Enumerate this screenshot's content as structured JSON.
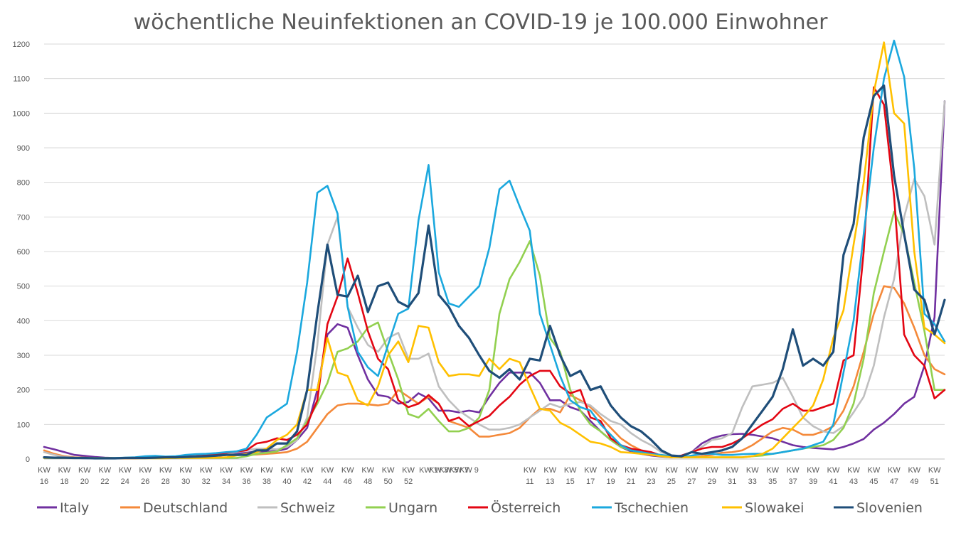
{
  "chart_data": {
    "type": "line",
    "title": "wöchentliche Neuinfektionen an COVID-19 je 100.000 Einwohner",
    "xlabel": "",
    "ylabel": "",
    "ylim": [
      0,
      1200
    ],
    "y_ticks": [
      0,
      100,
      200,
      300,
      400,
      500,
      600,
      700,
      800,
      900,
      1000,
      1100,
      1200
    ],
    "grid": "horizontal",
    "legend_position": "bottom",
    "x": [
      "KW 16",
      "KW 17",
      "KW 18",
      "KW 19",
      "KW 20",
      "KW 21",
      "KW 22",
      "KW 23",
      "KW 24",
      "KW 25",
      "KW 26",
      "KW 27",
      "KW 28",
      "KW 29",
      "KW 30",
      "KW 31",
      "KW 32",
      "KW 33",
      "KW 34",
      "KW 35",
      "KW 36",
      "KW 37",
      "KW 38",
      "KW 39",
      "KW 40",
      "KW 41",
      "KW 42",
      "KW 43",
      "KW 44",
      "KW 45",
      "KW 46",
      "KW 47",
      "KW 48",
      "KW 49",
      "KW 50",
      "KW 51",
      "KW 52",
      "KW 53",
      "KW 1",
      "KW 2",
      "KW 3",
      "KW 4",
      "KW 5",
      "KW 6",
      "KW 7",
      "KW 8",
      "KW 9",
      "KW 10",
      "KW 11",
      "KW 12",
      "KW 13",
      "KW 14",
      "KW 15",
      "KW 16",
      "KW 17",
      "KW 18",
      "KW 19",
      "KW 20",
      "KW 21",
      "KW 22",
      "KW 23",
      "KW 24",
      "KW 25",
      "KW 26",
      "KW 27",
      "KW 28",
      "KW 29",
      "KW 30",
      "KW 31",
      "KW 32",
      "KW 33",
      "KW 34",
      "KW 35",
      "KW 36",
      "KW 37",
      "KW 38",
      "KW 39",
      "KW 40",
      "KW 41",
      "KW 42",
      "KW 43",
      "KW 44",
      "KW 45",
      "KW 46",
      "KW 47",
      "KW 48",
      "KW 49",
      "KW 50",
      "KW 51",
      "KW 52"
    ],
    "x_tick_labels": [
      {
        "i": 0,
        "top": "KW",
        "bottom": "16"
      },
      {
        "i": 2,
        "top": "KW",
        "bottom": "18"
      },
      {
        "i": 4,
        "top": "KW",
        "bottom": "20"
      },
      {
        "i": 6,
        "top": "KW",
        "bottom": "22"
      },
      {
        "i": 8,
        "top": "KW",
        "bottom": "24"
      },
      {
        "i": 10,
        "top": "KW",
        "bottom": "26"
      },
      {
        "i": 12,
        "top": "KW",
        "bottom": "28"
      },
      {
        "i": 14,
        "top": "KW",
        "bottom": "30"
      },
      {
        "i": 16,
        "top": "KW",
        "bottom": "32"
      },
      {
        "i": 18,
        "top": "KW",
        "bottom": "34"
      },
      {
        "i": 20,
        "top": "KW",
        "bottom": "36"
      },
      {
        "i": 22,
        "top": "KW",
        "bottom": "38"
      },
      {
        "i": 24,
        "top": "KW",
        "bottom": "40"
      },
      {
        "i": 26,
        "top": "KW",
        "bottom": "42"
      },
      {
        "i": 28,
        "top": "KW",
        "bottom": "44"
      },
      {
        "i": 30,
        "top": "KW",
        "bottom": "46"
      },
      {
        "i": 32,
        "top": "KW",
        "bottom": "48"
      },
      {
        "i": 34,
        "top": "KW",
        "bottom": "50"
      },
      {
        "i": 36,
        "top": "KW",
        "bottom": "52"
      },
      {
        "i": 38,
        "top": "KW 1",
        "bottom": ""
      },
      {
        "i": 39,
        "top": "KW 3",
        "bottom": ""
      },
      {
        "i": 40,
        "top": "KW 5",
        "bottom": ""
      },
      {
        "i": 41,
        "top": "KW 7",
        "bottom": ""
      },
      {
        "i": 42,
        "top": "KW 9",
        "bottom": ""
      },
      {
        "i": 48,
        "top": "KW",
        "bottom": "11"
      },
      {
        "i": 50,
        "top": "KW",
        "bottom": "13"
      },
      {
        "i": 52,
        "top": "KW",
        "bottom": "15"
      },
      {
        "i": 54,
        "top": "KW",
        "bottom": "17"
      },
      {
        "i": 56,
        "top": "KW",
        "bottom": "19"
      },
      {
        "i": 58,
        "top": "KW",
        "bottom": "21"
      },
      {
        "i": 60,
        "top": "KW",
        "bottom": "23"
      },
      {
        "i": 62,
        "top": "KW",
        "bottom": "25"
      },
      {
        "i": 64,
        "top": "KW",
        "bottom": "27"
      },
      {
        "i": 66,
        "top": "KW",
        "bottom": "29"
      },
      {
        "i": 68,
        "top": "KW",
        "bottom": "31"
      },
      {
        "i": 70,
        "top": "KW",
        "bottom": "33"
      },
      {
        "i": 72,
        "top": "KW",
        "bottom": "35"
      },
      {
        "i": 74,
        "top": "KW",
        "bottom": "37"
      },
      {
        "i": 76,
        "top": "KW",
        "bottom": "39"
      },
      {
        "i": 78,
        "top": "KW",
        "bottom": "41"
      },
      {
        "i": 80,
        "top": "KW",
        "bottom": "43"
      },
      {
        "i": 82,
        "top": "KW",
        "bottom": "45"
      },
      {
        "i": 84,
        "top": "KW",
        "bottom": "47"
      },
      {
        "i": 86,
        "top": "KW",
        "bottom": "49"
      },
      {
        "i": 88,
        "top": "KW",
        "bottom": "51"
      }
    ],
    "series": [
      {
        "name": "Italy",
        "color": "#7030A0",
        "values": [
          35,
          28,
          20,
          12,
          9,
          6,
          4,
          3,
          3,
          3,
          3,
          4,
          4,
          5,
          5,
          6,
          7,
          9,
          12,
          15,
          18,
          22,
          22,
          23,
          30,
          55,
          90,
          200,
          360,
          390,
          380,
          300,
          230,
          185,
          180,
          160,
          165,
          190,
          175,
          140,
          140,
          135,
          140,
          135,
          180,
          220,
          250,
          250,
          250,
          220,
          170,
          170,
          150,
          140,
          110,
          80,
          55,
          35,
          22,
          15,
          10,
          7,
          5,
          10,
          20,
          45,
          60,
          68,
          72,
          73,
          70,
          65,
          60,
          50,
          40,
          35,
          32,
          30,
          28,
          35,
          45,
          58,
          85,
          105,
          130,
          160,
          180,
          270,
          410,
          1035
        ]
      },
      {
        "name": "Deutschland",
        "color": "#F4893A",
        "values": [
          25,
          15,
          8,
          5,
          4,
          3,
          2,
          2,
          2,
          3,
          3,
          4,
          4,
          4,
          5,
          6,
          8,
          10,
          12,
          12,
          12,
          13,
          15,
          17,
          20,
          30,
          50,
          90,
          130,
          155,
          160,
          160,
          158,
          155,
          160,
          200,
          180,
          160,
          180,
          160,
          110,
          100,
          90,
          65,
          65,
          70,
          75,
          90,
          120,
          145,
          145,
          135,
          185,
          170,
          150,
          120,
          90,
          60,
          40,
          25,
          15,
          10,
          8,
          5,
          5,
          8,
          12,
          18,
          20,
          25,
          40,
          60,
          80,
          90,
          85,
          70,
          70,
          80,
          95,
          140,
          210,
          310,
          420,
          500,
          495,
          450,
          380,
          300,
          260,
          245
        ]
      },
      {
        "name": "Schweiz",
        "color": "#BFBFBF",
        "values": [
          20,
          12,
          6,
          4,
          3,
          2,
          2,
          2,
          2,
          2,
          3,
          4,
          5,
          6,
          7,
          9,
          10,
          12,
          15,
          20,
          25,
          30,
          30,
          28,
          35,
          55,
          120,
          330,
          620,
          700,
          440,
          380,
          330,
          310,
          350,
          365,
          290,
          290,
          305,
          210,
          170,
          140,
          120,
          100,
          85,
          85,
          90,
          100,
          120,
          140,
          160,
          150,
          160,
          165,
          155,
          130,
          110,
          100,
          75,
          55,
          40,
          20,
          10,
          8,
          20,
          35,
          55,
          60,
          75,
          150,
          210,
          215,
          220,
          235,
          180,
          120,
          95,
          80,
          75,
          95,
          135,
          180,
          270,
          410,
          520,
          700,
          810,
          760,
          620,
          1035
        ]
      },
      {
        "name": "Ungarn",
        "color": "#92D050",
        "values": [
          3,
          3,
          3,
          3,
          3,
          3,
          3,
          3,
          3,
          3,
          3,
          3,
          3,
          3,
          3,
          3,
          3,
          3,
          3,
          3,
          8,
          15,
          18,
          22,
          40,
          60,
          110,
          160,
          220,
          310,
          320,
          340,
          380,
          395,
          310,
          230,
          130,
          120,
          145,
          110,
          80,
          80,
          90,
          120,
          200,
          420,
          520,
          570,
          630,
          530,
          350,
          310,
          200,
          140,
          100,
          80,
          55,
          35,
          25,
          20,
          15,
          10,
          8,
          5,
          5,
          5,
          5,
          5,
          5,
          5,
          8,
          10,
          15,
          20,
          25,
          30,
          35,
          40,
          55,
          90,
          160,
          290,
          480,
          600,
          715,
          650,
          510,
          370,
          200,
          200
        ]
      },
      {
        "name": "Österreich",
        "color": "#E30613",
        "values": [
          5,
          4,
          3,
          3,
          2,
          2,
          2,
          2,
          2,
          2,
          3,
          4,
          5,
          6,
          7,
          8,
          10,
          14,
          18,
          22,
          25,
          45,
          50,
          60,
          55,
          70,
          100,
          170,
          390,
          470,
          580,
          480,
          370,
          290,
          260,
          170,
          150,
          160,
          185,
          160,
          110,
          120,
          95,
          110,
          125,
          155,
          180,
          215,
          240,
          255,
          255,
          210,
          190,
          200,
          120,
          110,
          60,
          40,
          30,
          25,
          20,
          10,
          5,
          10,
          20,
          30,
          35,
          35,
          45,
          60,
          80,
          100,
          115,
          145,
          160,
          140,
          140,
          150,
          160,
          285,
          300,
          600,
          1075,
          1025,
          760,
          360,
          300,
          270,
          175,
          200
        ]
      },
      {
        "name": "Tschechien",
        "color": "#1BA8DE",
        "values": [
          3,
          3,
          3,
          3,
          2,
          2,
          2,
          3,
          4,
          5,
          8,
          9,
          7,
          8,
          12,
          14,
          15,
          17,
          20,
          22,
          30,
          70,
          120,
          140,
          160,
          310,
          510,
          770,
          790,
          710,
          440,
          310,
          265,
          240,
          330,
          420,
          435,
          690,
          850,
          540,
          450,
          440,
          470,
          500,
          610,
          780,
          805,
          730,
          660,
          420,
          330,
          240,
          170,
          150,
          140,
          100,
          70,
          40,
          25,
          20,
          15,
          12,
          8,
          5,
          10,
          15,
          15,
          12,
          12,
          14,
          15,
          15,
          15,
          20,
          25,
          30,
          40,
          50,
          100,
          250,
          400,
          650,
          900,
          1100,
          1210,
          1105,
          840,
          420,
          390,
          340
        ]
      },
      {
        "name": "Slowakei",
        "color": "#FFC000",
        "values": [
          3,
          3,
          3,
          3,
          3,
          2,
          2,
          2,
          2,
          2,
          2,
          2,
          2,
          3,
          3,
          3,
          3,
          4,
          5,
          10,
          15,
          20,
          30,
          55,
          70,
          100,
          200,
          200,
          350,
          250,
          240,
          170,
          155,
          210,
          300,
          340,
          280,
          385,
          380,
          280,
          240,
          245,
          245,
          240,
          290,
          260,
          290,
          280,
          210,
          145,
          140,
          105,
          90,
          70,
          50,
          45,
          35,
          20,
          18,
          15,
          12,
          8,
          5,
          5,
          5,
          5,
          5,
          5,
          5,
          5,
          8,
          15,
          30,
          60,
          90,
          120,
          155,
          230,
          350,
          430,
          620,
          800,
          1060,
          1205,
          1000,
          970,
          600,
          380,
          360,
          335
        ]
      },
      {
        "name": "Slovenien",
        "color": "#1F4E79",
        "values": [
          5,
          4,
          4,
          3,
          3,
          2,
          2,
          2,
          3,
          3,
          3,
          4,
          5,
          5,
          6,
          7,
          8,
          10,
          12,
          12,
          12,
          25,
          25,
          45,
          45,
          80,
          200,
          420,
          620,
          475,
          470,
          530,
          425,
          500,
          510,
          455,
          440,
          480,
          675,
          475,
          440,
          385,
          350,
          300,
          255,
          235,
          260,
          230,
          290,
          285,
          385,
          300,
          240,
          255,
          200,
          210,
          155,
          120,
          95,
          80,
          55,
          25,
          10,
          8,
          20,
          15,
          20,
          25,
          35,
          60,
          100,
          140,
          180,
          260,
          375,
          270,
          290,
          270,
          310,
          590,
          680,
          930,
          1050,
          1080,
          820,
          650,
          490,
          460,
          360,
          460
        ]
      }
    ]
  }
}
